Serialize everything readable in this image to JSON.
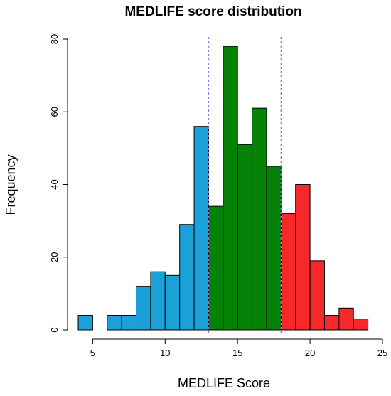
{
  "chart_data": {
    "type": "bar",
    "title": "MEDLIFE score distribution",
    "xlabel": "MEDLIFE Score",
    "ylabel": "Frequency",
    "xlim": [
      4,
      25
    ],
    "ylim": [
      0,
      80
    ],
    "xticks": [
      5,
      10,
      15,
      20,
      25
    ],
    "yticks": [
      0,
      20,
      40,
      60,
      80
    ],
    "bin_width": 1,
    "bins": [
      {
        "start": 4,
        "end": 5,
        "count": 4,
        "group": "low"
      },
      {
        "start": 5,
        "end": 6,
        "count": 0,
        "group": "low"
      },
      {
        "start": 6,
        "end": 7,
        "count": 4,
        "group": "low"
      },
      {
        "start": 7,
        "end": 8,
        "count": 4,
        "group": "low"
      },
      {
        "start": 8,
        "end": 9,
        "count": 12,
        "group": "low"
      },
      {
        "start": 9,
        "end": 10,
        "count": 16,
        "group": "low"
      },
      {
        "start": 10,
        "end": 11,
        "count": 15,
        "group": "low"
      },
      {
        "start": 11,
        "end": 12,
        "count": 29,
        "group": "low"
      },
      {
        "start": 12,
        "end": 13,
        "count": 56,
        "group": "low"
      },
      {
        "start": 13,
        "end": 14,
        "count": 34,
        "group": "medium"
      },
      {
        "start": 14,
        "end": 15,
        "count": 78,
        "group": "medium"
      },
      {
        "start": 15,
        "end": 16,
        "count": 51,
        "group": "medium"
      },
      {
        "start": 16,
        "end": 17,
        "count": 61,
        "group": "medium"
      },
      {
        "start": 17,
        "end": 18,
        "count": 45,
        "group": "medium"
      },
      {
        "start": 18,
        "end": 19,
        "count": 32,
        "group": "high"
      },
      {
        "start": 19,
        "end": 20,
        "count": 40,
        "group": "high"
      },
      {
        "start": 20,
        "end": 21,
        "count": 19,
        "group": "high"
      },
      {
        "start": 21,
        "end": 22,
        "count": 4,
        "group": "high"
      },
      {
        "start": 22,
        "end": 23,
        "count": 6,
        "group": "high"
      },
      {
        "start": 23,
        "end": 24,
        "count": 3,
        "group": "high"
      }
    ],
    "group_colors": {
      "low": "#1ba1d8",
      "medium": "#068307",
      "high": "#f7282a"
    },
    "cutoff_lines": [
      13,
      18
    ],
    "cutoff_line_color": "#8080ee",
    "cutoff_line_style": "dashed",
    "bar_border_color": "#000000",
    "grid": false,
    "legend": "none"
  }
}
